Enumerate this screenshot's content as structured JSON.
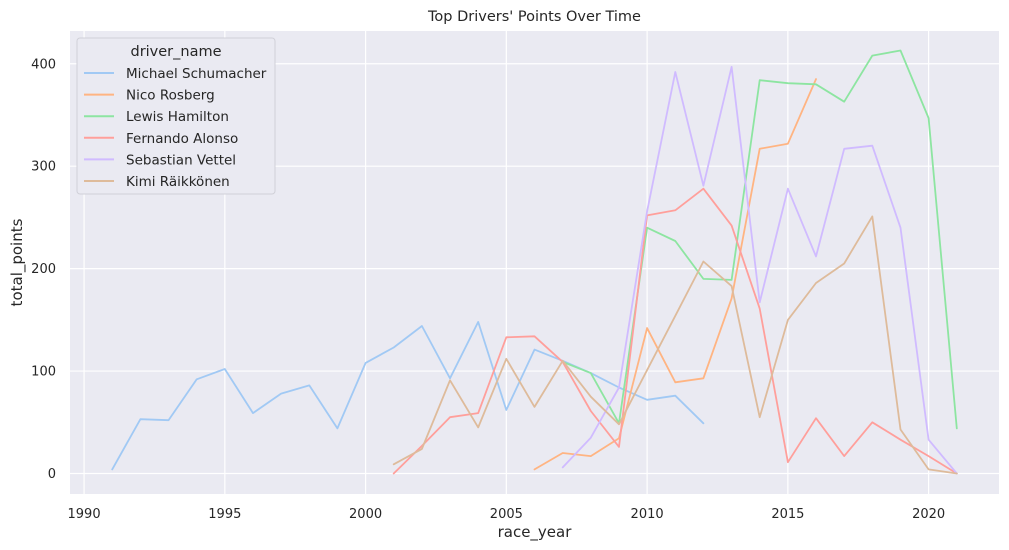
{
  "chart_data": {
    "type": "line",
    "title": "Top Drivers' Points Over Time",
    "xlabel": "race_year",
    "ylabel": "total_points",
    "xlim": [
      1989.5,
      2022.5
    ],
    "ylim": [
      -20,
      432
    ],
    "xticks": [
      1990,
      1995,
      2000,
      2005,
      2010,
      2015,
      2020
    ],
    "yticks": [
      0,
      100,
      200,
      300,
      400
    ],
    "grid": true,
    "legend": {
      "title": "driver_name",
      "placement": "top-left"
    },
    "series": [
      {
        "name": "Michael Schumacher",
        "color": "#a1c9f4",
        "x": [
          1991,
          1992,
          1993,
          1994,
          1995,
          1996,
          1997,
          1998,
          1999,
          2000,
          2001,
          2002,
          2003,
          2004,
          2005,
          2006,
          2007,
          2008,
          2009,
          2010,
          2011,
          2012
        ],
        "y": [
          4,
          53,
          52,
          92,
          102,
          59,
          78,
          86,
          44,
          108,
          123,
          144,
          93,
          148,
          62,
          121,
          110,
          98,
          84,
          72,
          76,
          49
        ]
      },
      {
        "name": "Nico Rosberg",
        "color": "#ffb482",
        "x": [
          2006,
          2007,
          2008,
          2009,
          2010,
          2011,
          2012,
          2013,
          2014,
          2015,
          2016
        ],
        "y": [
          4,
          20,
          17,
          34.5,
          142,
          89,
          93,
          171,
          317,
          322,
          385
        ]
      },
      {
        "name": "Lewis Hamilton",
        "color": "#8de5a1",
        "x": [
          2007,
          2008,
          2009,
          2010,
          2011,
          2012,
          2013,
          2014,
          2015,
          2016,
          2017,
          2018,
          2019,
          2020,
          2021
        ],
        "y": [
          109,
          98,
          49,
          240,
          227,
          190,
          189,
          384,
          381,
          380,
          363,
          408,
          413,
          347,
          44
        ]
      },
      {
        "name": "Fernando Alonso",
        "color": "#ff9f9b",
        "x": [
          2001,
          2002,
          2003,
          2004,
          2005,
          2006,
          2007,
          2008,
          2009,
          2010,
          2011,
          2012,
          2013,
          2014,
          2015,
          2016,
          2017,
          2018,
          2019,
          2020,
          2021
        ],
        "y": [
          0,
          27,
          55,
          59,
          133,
          134,
          109,
          61,
          26,
          252,
          257,
          278,
          242,
          161,
          11,
          54,
          17,
          50,
          33,
          17,
          0
        ]
      },
      {
        "name": "Sebastian Vettel",
        "color": "#d0bbff",
        "x": [
          2007,
          2008,
          2009,
          2010,
          2011,
          2012,
          2013,
          2014,
          2015,
          2016,
          2017,
          2018,
          2019,
          2020,
          2021
        ],
        "y": [
          6,
          35,
          84,
          256,
          392,
          281,
          397,
          167,
          278,
          212,
          317,
          320,
          240,
          33,
          0
        ]
      },
      {
        "name": "Kimi Räikkönen",
        "color": "#debb9b",
        "x": [
          2001,
          2002,
          2003,
          2004,
          2005,
          2006,
          2007,
          2008,
          2009,
          2010,
          2011,
          2012,
          2013,
          2014,
          2015,
          2016,
          2017,
          2018,
          2019,
          2020,
          2021
        ],
        "y": [
          9,
          24,
          91,
          45,
          112,
          65,
          110,
          75,
          48,
          101,
          154,
          207,
          183,
          55,
          150,
          186,
          205,
          251,
          43,
          4,
          0
        ]
      }
    ]
  }
}
